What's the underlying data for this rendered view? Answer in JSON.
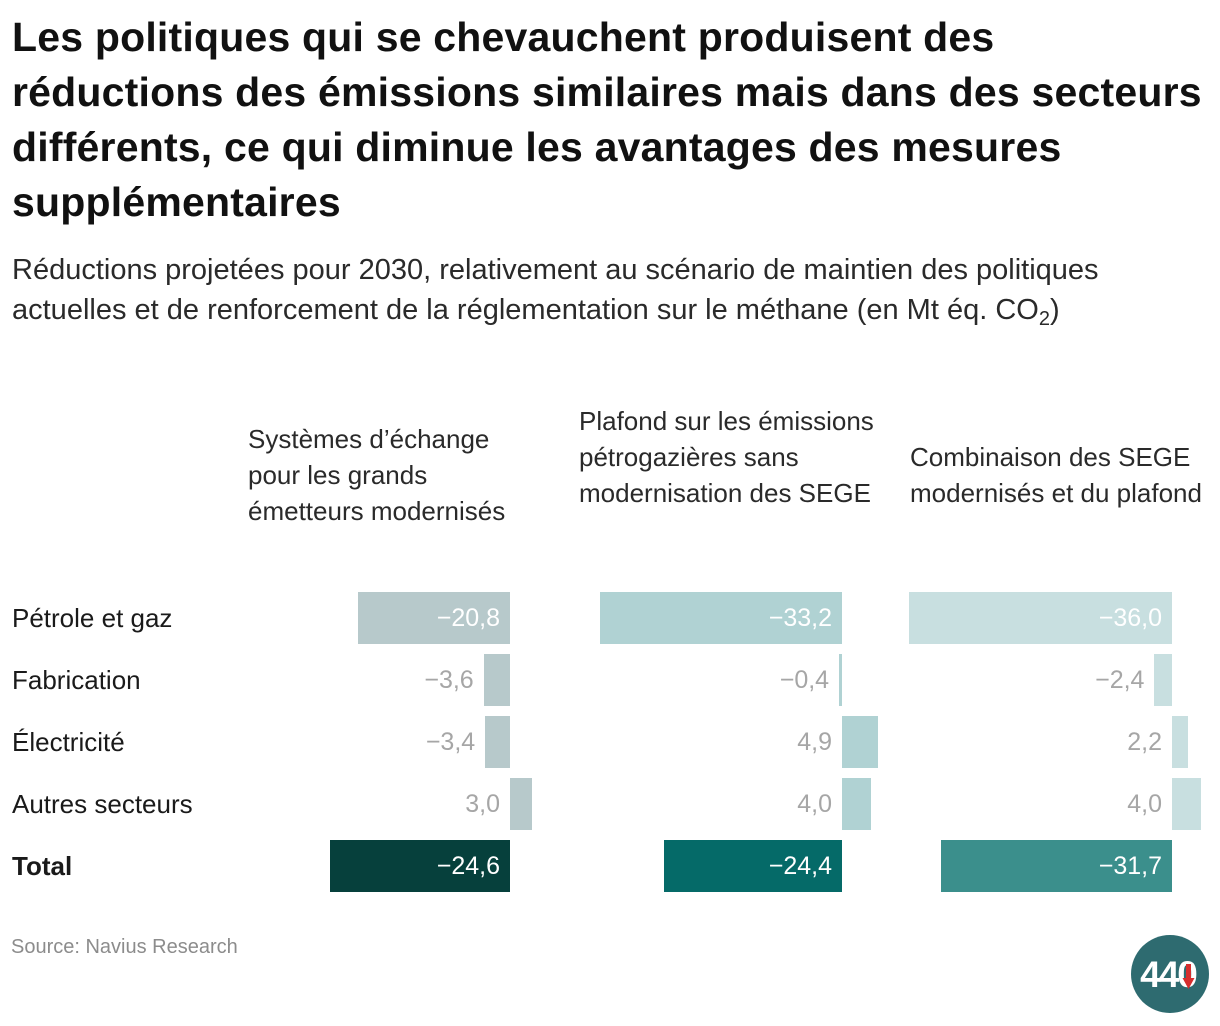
{
  "title": "Les politiques qui se chevauchent produisent des réductions des émissions similaires mais dans des secteurs différents, ce qui diminue les avantages des mesures supplémentaires",
  "subtitle": {
    "main": "Réductions projetées pour 2030, relativement au scénario de maintien des politiques actuelles et de renforcement de la réglementation sur le méthane (en Mt éq. CO",
    "subscript": "2",
    "end": ")"
  },
  "source": "Source: Navius Research",
  "logo": {
    "text": "440"
  },
  "colors": {
    "total": [
      "#06403c",
      "#056a68",
      "#3b8f8c"
    ],
    "sectors": [
      "#b7c9cb",
      "#b0d2d3",
      "#c8dfe0"
    ],
    "label_on_bar": "#ffffff",
    "label_faint": "#a6a6a6",
    "logo_bg": "#2e6b70",
    "logo_arrow": "#d62e2e"
  },
  "chart_data": {
    "type": "bar",
    "orientation": "horizontal",
    "layout": "small-multiples",
    "title": "Les politiques qui se chevauchent produisent des réductions des émissions similaires mais dans des secteurs différents, ce qui diminue les avantages des mesures supplémentaires",
    "subtitle": "Réductions projetées pour 2030, relativement au scénario de maintien des politiques actuelles et de renforcement de la réglementation sur le méthane (en Mt éq. CO2)",
    "unit": "Mt éq. CO2",
    "categories": [
      "Pétrole et gaz",
      "Fabrication",
      "Électricité",
      "Autres secteurs",
      "Total"
    ],
    "series": [
      {
        "name": "Systèmes d’échange pour les grands émetteurs modernisés",
        "values": [
          -20.8,
          -3.6,
          -3.4,
          3.0,
          -24.6
        ],
        "labels": [
          "−20,8",
          "−3,6",
          "−3,4",
          "3,0",
          "−24,6"
        ]
      },
      {
        "name": "Plafond sur les émissions pétrogazières sans modernisation des SEGE",
        "values": [
          -33.2,
          -0.4,
          4.9,
          4.0,
          -24.4
        ],
        "labels": [
          "−33,2",
          "−0,4",
          "4,9",
          "4,0",
          "−24,4"
        ]
      },
      {
        "name": "Combinaison des SEGE modernisés et du plafond",
        "values": [
          -36.0,
          -2.4,
          2.2,
          4.0,
          -31.7
        ],
        "labels": [
          "−36,0",
          "−2,4",
          "2,2",
          "4,0",
          "−31,7"
        ]
      }
    ],
    "source": "Source: Navius Research"
  }
}
